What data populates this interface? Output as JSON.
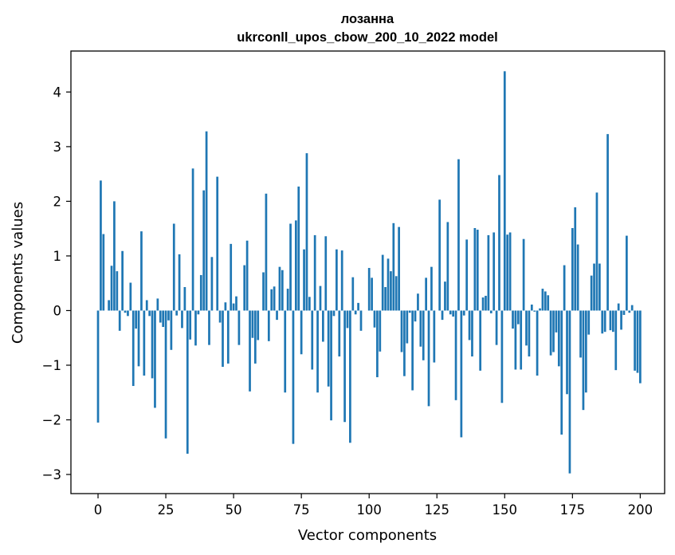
{
  "chart_data": {
    "type": "bar",
    "title": "лозанна",
    "subtitle": "ukrconll_upos_cbow_200_10_2022 model",
    "xlabel": "Vector components",
    "ylabel": "Components values",
    "xlim": [
      -10,
      209
    ],
    "ylim": [
      -3.35,
      4.75
    ],
    "x_ticks": [
      0,
      25,
      50,
      75,
      100,
      125,
      150,
      175,
      200
    ],
    "y_ticks": [
      -3,
      -2,
      -1,
      0,
      1,
      2,
      3,
      4
    ],
    "x_tick_labels": [
      "0",
      "25",
      "50",
      "75",
      "100",
      "125",
      "150",
      "175",
      "200"
    ],
    "y_tick_labels": [
      "−3",
      "−2",
      "−1",
      "0",
      "1",
      "2",
      "3",
      "4"
    ],
    "grid": false,
    "bar_color": "#1f77b4",
    "values": [
      -2.05,
      2.38,
      1.4,
      0.0,
      0.19,
      0.82,
      2.0,
      0.72,
      -0.37,
      1.09,
      -0.04,
      -0.1,
      0.51,
      -1.38,
      -0.33,
      -1.02,
      1.45,
      -1.19,
      0.19,
      -0.1,
      -1.24,
      -1.78,
      0.22,
      -0.22,
      -0.3,
      -2.34,
      -0.18,
      -0.72,
      1.59,
      -0.09,
      1.03,
      -0.32,
      0.43,
      -2.62,
      -0.53,
      2.6,
      -0.64,
      -0.07,
      0.65,
      2.2,
      3.28,
      -0.63,
      0.98,
      0.0,
      2.45,
      -0.22,
      -1.03,
      0.15,
      -0.97,
      1.22,
      0.13,
      0.26,
      -0.63,
      0.0,
      0.83,
      1.28,
      -1.48,
      -0.5,
      -0.97,
      -0.54,
      0.0,
      0.7,
      2.14,
      -0.56,
      0.39,
      0.44,
      -0.17,
      0.8,
      0.74,
      -1.5,
      0.4,
      1.59,
      -2.44,
      1.65,
      2.27,
      -0.8,
      1.12,
      2.88,
      0.25,
      -1.08,
      1.38,
      -1.5,
      0.45,
      -0.57,
      1.36,
      -1.39,
      -2.01,
      -0.1,
      1.12,
      -0.84,
      1.1,
      -2.04,
      -0.32,
      -2.42,
      0.61,
      -0.07,
      0.14,
      -0.37,
      0.0,
      0.0,
      0.78,
      0.6,
      -0.31,
      -1.22,
      -0.75,
      1.02,
      0.43,
      0.95,
      0.72,
      1.6,
      0.63,
      1.53,
      -0.76,
      -1.2,
      -0.6,
      -0.04,
      -1.46,
      -0.2,
      0.31,
      -0.66,
      -0.91,
      0.6,
      -1.75,
      0.8,
      -0.95,
      0.0,
      2.03,
      -0.17,
      0.53,
      1.62,
      -0.07,
      -0.11,
      -1.64,
      2.77,
      -2.32,
      -0.09,
      1.3,
      -0.54,
      -0.84,
      1.51,
      1.48,
      -1.1,
      0.24,
      0.27,
      1.38,
      -0.05,
      1.43,
      -0.63,
      2.48,
      -1.69,
      4.38,
      1.39,
      1.43,
      -0.33,
      -1.08,
      -0.25,
      -1.08,
      1.31,
      -0.64,
      -0.84,
      0.11,
      -0.02,
      -1.19,
      0.04,
      0.4,
      0.35,
      0.28,
      -0.82,
      -0.76,
      -0.4,
      -1.02,
      -2.27,
      0.83,
      -1.53,
      -2.98,
      1.51,
      1.89,
      1.21,
      -0.86,
      -1.82,
      -1.5,
      -0.44,
      0.64,
      0.86,
      2.16,
      0.86,
      -0.42,
      -0.39,
      3.23,
      -0.36,
      -0.39,
      -1.09,
      0.13,
      -0.35,
      -0.08,
      1.37,
      -0.04,
      0.1,
      -1.1,
      -1.14,
      -1.33
    ]
  }
}
